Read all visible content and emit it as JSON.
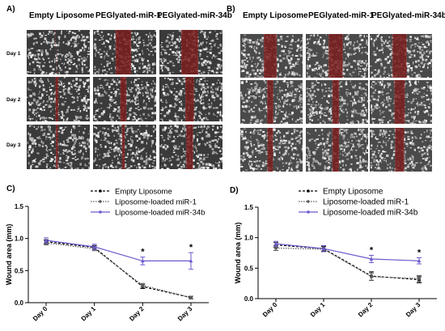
{
  "panels": {
    "A": {
      "label": "A)",
      "columns": [
        "Empty Liposome",
        "PEGlyated-miR-1",
        "PEGlyated-miR-34b"
      ],
      "rows": [
        "Day 1",
        "Day 2",
        "Day 3"
      ]
    },
    "B": {
      "label": "B)",
      "columns": [
        "Empty Liposome",
        "PEGlyated-miR-1",
        "PEGlyated-miR-34b"
      ]
    }
  },
  "colors": {
    "empty": "#000000",
    "mir1": "#5a5a5a",
    "mir34b": "#6a5acd",
    "scratch": "#7a1f1f"
  },
  "chart_data": [
    {
      "panel": "C)",
      "type": "line",
      "categories": [
        "Day 0",
        "Day 1",
        "Day 2",
        "Day 3"
      ],
      "ylabel": "Wound area (mm)",
      "ylim": [
        0,
        1.5
      ],
      "yticks": [
        "0.0",
        "0.5",
        "1.0",
        "1.5"
      ],
      "legend_position": "top-right",
      "series": [
        {
          "name": "Empty Liposome",
          "values": [
            0.95,
            0.86,
            0.25,
            0.08
          ],
          "errors": [
            0.03,
            0.03,
            0.03,
            0.02
          ]
        },
        {
          "name": "Liposome-loaded miR-1",
          "values": [
            0.93,
            0.84,
            0.27,
            0.08
          ],
          "errors": [
            0.03,
            0.03,
            0.03,
            0.02
          ]
        },
        {
          "name": "Liposome-loaded miR-34b",
          "values": [
            0.97,
            0.87,
            0.65,
            0.65
          ],
          "errors": [
            0.04,
            0.04,
            0.06,
            0.13
          ]
        }
      ],
      "significance": [
        {
          "category": "Day 2",
          "mark": "*"
        },
        {
          "category": "Day 3",
          "mark": "*"
        }
      ]
    },
    {
      "panel": "D)",
      "type": "line",
      "categories": [
        "Day 0",
        "Day 1",
        "Day 2",
        "Day 3"
      ],
      "ylabel": "Wound area (mm)",
      "ylim": [
        0,
        1.5
      ],
      "yticks": [
        "0.0",
        "0.5",
        "1.0",
        "1.5"
      ],
      "legend_position": "top-right",
      "series": [
        {
          "name": "Empty Liposome",
          "values": [
            0.88,
            0.82,
            0.37,
            0.31
          ],
          "errors": [
            0.04,
            0.04,
            0.07,
            0.05
          ]
        },
        {
          "name": "Liposome-loaded miR-1",
          "values": [
            0.83,
            0.81,
            0.36,
            0.33
          ],
          "errors": [
            0.04,
            0.04,
            0.06,
            0.05
          ]
        },
        {
          "name": "Liposome-loaded miR-34b",
          "values": [
            0.9,
            0.82,
            0.65,
            0.62
          ],
          "errors": [
            0.04,
            0.05,
            0.06,
            0.05
          ]
        }
      ],
      "significance": [
        {
          "category": "Day 2",
          "mark": "*"
        },
        {
          "category": "Day 3",
          "mark": "*"
        }
      ]
    }
  ]
}
